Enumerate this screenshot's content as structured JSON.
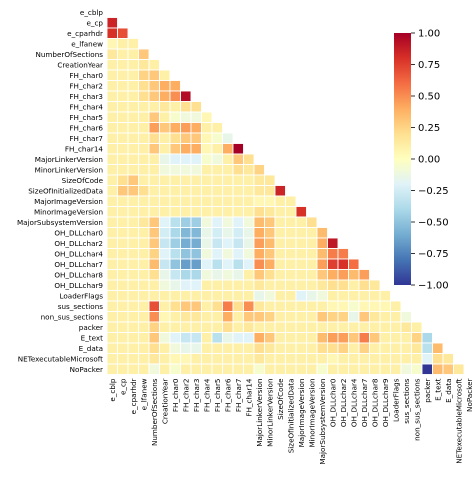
{
  "chart_data": {
    "type": "heatmap",
    "variables": [
      "e_cblp",
      "e_cp",
      "e_cparhdr",
      "e_lfanew",
      "NumberOfSections",
      "CreationYear",
      "FH_char0",
      "FH_char2",
      "FH_char3",
      "FH_char4",
      "FH_char5",
      "FH_char6",
      "FH_char7",
      "FH_char14",
      "MajorLinkerVersion",
      "MinorLinkerVersion",
      "SizeOfCode",
      "SizeOfInitializedData",
      "MajorImageVersion",
      "MinorImageVersion",
      "MajorSubsystemVersion",
      "OH_DLLchar0",
      "OH_DLLchar2",
      "OH_DLLchar4",
      "OH_DLLchar7",
      "OH_DLLchar8",
      "OH_DLLchar9",
      "LoaderFlags",
      "sus_sections",
      "non_sus_sections",
      "packer",
      "E_text",
      "E_data",
      "NETexecutableMicrosoft",
      "NoPacker"
    ],
    "mask": "upper-triangle",
    "default_value": 0.1,
    "cells": [
      [
        1,
        0,
        0.85
      ],
      [
        2,
        0,
        0.8
      ],
      [
        2,
        1,
        0.7
      ],
      [
        3,
        0,
        0.05
      ],
      [
        4,
        0,
        0.15
      ],
      [
        4,
        3,
        0.3
      ],
      [
        5,
        3,
        0.15
      ],
      [
        6,
        3,
        0.25
      ],
      [
        6,
        4,
        0.3
      ],
      [
        7,
        3,
        0.2
      ],
      [
        7,
        4,
        0.3
      ],
      [
        7,
        5,
        0.4
      ],
      [
        7,
        6,
        0.4
      ],
      [
        8,
        3,
        0.2
      ],
      [
        8,
        4,
        0.3
      ],
      [
        8,
        5,
        0.4
      ],
      [
        8,
        6,
        0.5
      ],
      [
        8,
        7,
        0.95
      ],
      [
        9,
        5,
        0.15
      ],
      [
        9,
        7,
        0.2
      ],
      [
        9,
        8,
        0.2
      ],
      [
        10,
        4,
        0.3
      ],
      [
        10,
        5,
        0.1
      ],
      [
        10,
        6,
        -0.05
      ],
      [
        10,
        7,
        -0.1
      ],
      [
        10,
        8,
        -0.1
      ],
      [
        10,
        9,
        0.05
      ],
      [
        11,
        4,
        0.45
      ],
      [
        11,
        5,
        0.3
      ],
      [
        11,
        6,
        0.4
      ],
      [
        11,
        7,
        0.45
      ],
      [
        11,
        8,
        0.4
      ],
      [
        11,
        9,
        0.1
      ],
      [
        11,
        10,
        0.1
      ],
      [
        12,
        4,
        0.2
      ],
      [
        12,
        5,
        0.1
      ],
      [
        12,
        6,
        0.2
      ],
      [
        12,
        7,
        0.3
      ],
      [
        12,
        8,
        0.3
      ],
      [
        12,
        9,
        0.05
      ],
      [
        12,
        10,
        -0.05
      ],
      [
        12,
        11,
        -0.15
      ],
      [
        13,
        4,
        0.3
      ],
      [
        13,
        5,
        0.1
      ],
      [
        13,
        6,
        0.3
      ],
      [
        13,
        7,
        0.4
      ],
      [
        13,
        8,
        0.4
      ],
      [
        13,
        9,
        0.05
      ],
      [
        13,
        10,
        0.1
      ],
      [
        13,
        11,
        0.4
      ],
      [
        13,
        12,
        1.0
      ],
      [
        14,
        5,
        -0.15
      ],
      [
        14,
        6,
        -0.2
      ],
      [
        14,
        7,
        -0.2
      ],
      [
        14,
        8,
        -0.2
      ],
      [
        14,
        9,
        -0.05
      ],
      [
        14,
        10,
        -0.1
      ],
      [
        14,
        11,
        0.1
      ],
      [
        14,
        12,
        0.3
      ],
      [
        14,
        13,
        0.2
      ],
      [
        15,
        5,
        -0.1
      ],
      [
        15,
        6,
        -0.1
      ],
      [
        15,
        7,
        -0.1
      ],
      [
        15,
        8,
        -0.1
      ],
      [
        15,
        11,
        0.1
      ],
      [
        15,
        12,
        0.2
      ],
      [
        15,
        13,
        0.15
      ],
      [
        15,
        14,
        0.25
      ],
      [
        16,
        1,
        0.2
      ],
      [
        16,
        2,
        0.3
      ],
      [
        16,
        14,
        0.15
      ],
      [
        16,
        15,
        0.15
      ],
      [
        17,
        1,
        0.3
      ],
      [
        17,
        2,
        0.3
      ],
      [
        17,
        3,
        0.2
      ],
      [
        17,
        14,
        0.15
      ],
      [
        17,
        15,
        0.15
      ],
      [
        17,
        16,
        0.85
      ],
      [
        18,
        14,
        0.05
      ],
      [
        18,
        15,
        0.05
      ],
      [
        19,
        14,
        0.2
      ],
      [
        19,
        15,
        0.15
      ],
      [
        19,
        18,
        0.8
      ],
      [
        20,
        3,
        0.15
      ],
      [
        20,
        4,
        0.3
      ],
      [
        20,
        5,
        -0.2
      ],
      [
        20,
        6,
        -0.35
      ],
      [
        20,
        7,
        -0.45
      ],
      [
        20,
        8,
        -0.45
      ],
      [
        20,
        9,
        -0.1
      ],
      [
        20,
        10,
        -0.2
      ],
      [
        20,
        11,
        -0.1
      ],
      [
        20,
        12,
        -0.2
      ],
      [
        20,
        13,
        -0.1
      ],
      [
        20,
        14,
        0.35
      ],
      [
        20,
        15,
        0.3
      ],
      [
        20,
        16,
        0.1
      ],
      [
        20,
        17,
        0.1
      ],
      [
        20,
        18,
        0.1
      ],
      [
        20,
        19,
        0.2
      ],
      [
        21,
        4,
        0.3
      ],
      [
        21,
        5,
        -0.25
      ],
      [
        21,
        6,
        -0.4
      ],
      [
        21,
        7,
        -0.55
      ],
      [
        21,
        8,
        -0.55
      ],
      [
        21,
        9,
        -0.15
      ],
      [
        21,
        10,
        -0.25
      ],
      [
        21,
        11,
        -0.15
      ],
      [
        21,
        12,
        -0.25
      ],
      [
        21,
        13,
        -0.15
      ],
      [
        21,
        14,
        0.4
      ],
      [
        21,
        15,
        0.3
      ],
      [
        21,
        20,
        0.35
      ],
      [
        22,
        4,
        0.3
      ],
      [
        22,
        5,
        -0.3
      ],
      [
        22,
        6,
        -0.45
      ],
      [
        22,
        7,
        -0.6
      ],
      [
        22,
        8,
        -0.6
      ],
      [
        22,
        9,
        -0.15
      ],
      [
        22,
        10,
        -0.3
      ],
      [
        22,
        11,
        -0.2
      ],
      [
        22,
        12,
        -0.3
      ],
      [
        22,
        13,
        -0.15
      ],
      [
        22,
        14,
        0.45
      ],
      [
        22,
        15,
        0.35
      ],
      [
        22,
        20,
        0.4
      ],
      [
        22,
        21,
        0.9
      ],
      [
        23,
        4,
        0.25
      ],
      [
        23,
        5,
        -0.2
      ],
      [
        23,
        6,
        -0.35
      ],
      [
        23,
        7,
        -0.5
      ],
      [
        23,
        8,
        -0.5
      ],
      [
        23,
        9,
        -0.1
      ],
      [
        23,
        10,
        -0.2
      ],
      [
        23,
        11,
        -0.1
      ],
      [
        23,
        12,
        -0.2
      ],
      [
        23,
        13,
        -0.1
      ],
      [
        23,
        14,
        0.4
      ],
      [
        23,
        15,
        0.3
      ],
      [
        23,
        20,
        0.35
      ],
      [
        23,
        21,
        0.55
      ],
      [
        23,
        22,
        0.55
      ],
      [
        24,
        4,
        0.35
      ],
      [
        24,
        5,
        -0.3
      ],
      [
        24,
        6,
        -0.5
      ],
      [
        24,
        7,
        -0.65
      ],
      [
        24,
        8,
        -0.65
      ],
      [
        24,
        9,
        -0.2
      ],
      [
        24,
        10,
        -0.35
      ],
      [
        24,
        11,
        -0.2
      ],
      [
        24,
        12,
        -0.35
      ],
      [
        24,
        13,
        -0.2
      ],
      [
        24,
        14,
        0.5
      ],
      [
        24,
        15,
        0.4
      ],
      [
        24,
        20,
        0.45
      ],
      [
        24,
        21,
        0.75
      ],
      [
        24,
        22,
        0.8
      ],
      [
        24,
        23,
        0.6
      ],
      [
        25,
        4,
        0.2
      ],
      [
        25,
        5,
        -0.15
      ],
      [
        25,
        6,
        -0.3
      ],
      [
        25,
        7,
        -0.4
      ],
      [
        25,
        8,
        -0.4
      ],
      [
        25,
        9,
        -0.1
      ],
      [
        25,
        10,
        -0.15
      ],
      [
        25,
        11,
        -0.1
      ],
      [
        25,
        12,
        -0.15
      ],
      [
        25,
        14,
        0.3
      ],
      [
        25,
        15,
        0.2
      ],
      [
        25,
        20,
        0.3
      ],
      [
        25,
        21,
        0.4
      ],
      [
        25,
        22,
        0.45
      ],
      [
        25,
        23,
        0.35
      ],
      [
        25,
        24,
        0.45
      ],
      [
        26,
        5,
        -0.1
      ],
      [
        26,
        6,
        -0.15
      ],
      [
        26,
        7,
        -0.2
      ],
      [
        26,
        8,
        -0.2
      ],
      [
        26,
        14,
        0.15
      ],
      [
        26,
        15,
        0.1
      ],
      [
        26,
        20,
        0.15
      ],
      [
        26,
        21,
        0.2
      ],
      [
        26,
        22,
        0.2
      ],
      [
        26,
        24,
        0.2
      ],
      [
        26,
        25,
        0.15
      ],
      [
        27,
        14,
        -0.15
      ],
      [
        27,
        15,
        -0.1
      ],
      [
        27,
        18,
        -0.2
      ],
      [
        27,
        19,
        -0.15
      ],
      [
        27,
        20,
        -0.1
      ],
      [
        28,
        4,
        0.7
      ],
      [
        28,
        5,
        0.1
      ],
      [
        28,
        6,
        0.2
      ],
      [
        28,
        7,
        0.3
      ],
      [
        28,
        8,
        0.3
      ],
      [
        28,
        10,
        0.2
      ],
      [
        28,
        11,
        0.55
      ],
      [
        28,
        12,
        0.2
      ],
      [
        28,
        13,
        0.5
      ],
      [
        28,
        14,
        0.15
      ],
      [
        28,
        15,
        0.1
      ],
      [
        28,
        20,
        0.1
      ],
      [
        28,
        21,
        0.05
      ],
      [
        28,
        22,
        0.05
      ],
      [
        28,
        23,
        -0.05
      ],
      [
        28,
        24,
        0.05
      ],
      [
        28,
        25,
        0.05
      ],
      [
        28,
        26,
        0.05
      ],
      [
        29,
        4,
        0.5
      ],
      [
        29,
        5,
        0.05
      ],
      [
        29,
        6,
        0.1
      ],
      [
        29,
        7,
        0.15
      ],
      [
        29,
        8,
        0.15
      ],
      [
        29,
        11,
        0.4
      ],
      [
        29,
        12,
        0.1
      ],
      [
        29,
        13,
        0.3
      ],
      [
        29,
        14,
        0.3
      ],
      [
        29,
        15,
        0.25
      ],
      [
        29,
        20,
        0.3
      ],
      [
        29,
        21,
        0.25
      ],
      [
        29,
        22,
        0.25
      ],
      [
        29,
        23,
        -0.15
      ],
      [
        29,
        24,
        0.3
      ],
      [
        29,
        25,
        0.15
      ],
      [
        29,
        28,
        -0.1
      ],
      [
        30,
        4,
        0.25
      ],
      [
        30,
        6,
        0.1
      ],
      [
        30,
        7,
        0.1
      ],
      [
        30,
        8,
        0.1
      ],
      [
        30,
        11,
        0.2
      ],
      [
        30,
        13,
        0.15
      ],
      [
        30,
        14,
        0.1
      ],
      [
        30,
        20,
        0.1
      ],
      [
        30,
        21,
        0.1
      ],
      [
        30,
        22,
        0.1
      ],
      [
        30,
        24,
        0.1
      ],
      [
        30,
        28,
        0.15
      ],
      [
        30,
        29,
        0.1
      ],
      [
        31,
        3,
        0.1
      ],
      [
        31,
        4,
        0.3
      ],
      [
        31,
        5,
        -0.1
      ],
      [
        31,
        6,
        -0.2
      ],
      [
        31,
        7,
        -0.3
      ],
      [
        31,
        8,
        -0.3
      ],
      [
        31,
        10,
        -0.35
      ],
      [
        31,
        11,
        -0.15
      ],
      [
        31,
        12,
        -0.2
      ],
      [
        31,
        13,
        -0.2
      ],
      [
        31,
        14,
        0.4
      ],
      [
        31,
        15,
        0.3
      ],
      [
        31,
        20,
        0.35
      ],
      [
        31,
        21,
        0.45
      ],
      [
        31,
        22,
        0.45
      ],
      [
        31,
        23,
        0.3
      ],
      [
        31,
        24,
        0.55
      ],
      [
        31,
        25,
        0.3
      ],
      [
        31,
        28,
        0.1
      ],
      [
        31,
        29,
        0.25
      ],
      [
        31,
        30,
        -0.4
      ],
      [
        32,
        4,
        0.2
      ],
      [
        32,
        6,
        -0.1
      ],
      [
        32,
        7,
        -0.15
      ],
      [
        32,
        8,
        -0.15
      ],
      [
        32,
        14,
        0.2
      ],
      [
        32,
        15,
        0.15
      ],
      [
        32,
        20,
        0.2
      ],
      [
        32,
        21,
        0.2
      ],
      [
        32,
        22,
        0.25
      ],
      [
        32,
        24,
        0.25
      ],
      [
        32,
        29,
        0.15
      ],
      [
        32,
        30,
        -0.35
      ],
      [
        32,
        31,
        0.35
      ],
      [
        33,
        4,
        0.15
      ],
      [
        33,
        6,
        0.05
      ],
      [
        33,
        7,
        0.05
      ],
      [
        33,
        14,
        0.15
      ],
      [
        33,
        15,
        0.1
      ],
      [
        33,
        20,
        0.1
      ],
      [
        33,
        21,
        0.05
      ],
      [
        33,
        22,
        0.1
      ],
      [
        33,
        24,
        0.1
      ],
      [
        33,
        29,
        0.1
      ],
      [
        33,
        30,
        -0.2
      ],
      [
        33,
        31,
        0.2
      ],
      [
        33,
        32,
        0.15
      ],
      [
        34,
        4,
        -0.1
      ],
      [
        34,
        6,
        -0.05
      ],
      [
        34,
        14,
        -0.05
      ],
      [
        34,
        20,
        -0.05
      ],
      [
        34,
        28,
        -0.1
      ],
      [
        34,
        29,
        -0.05
      ],
      [
        34,
        30,
        -1.0
      ],
      [
        34,
        31,
        0.35
      ],
      [
        34,
        32,
        0.3
      ],
      [
        34,
        33,
        0.15
      ]
    ],
    "colorbar": {
      "min": -1.0,
      "max": 1.0,
      "ticks": [
        "1.00",
        "0.75",
        "0.50",
        "0.25",
        "0.00",
        "−0.25",
        "−0.50",
        "−0.75",
        "−1.00"
      ]
    },
    "colormap": "RdYlBu_r",
    "grid": true,
    "legend": "colorbar-right"
  }
}
